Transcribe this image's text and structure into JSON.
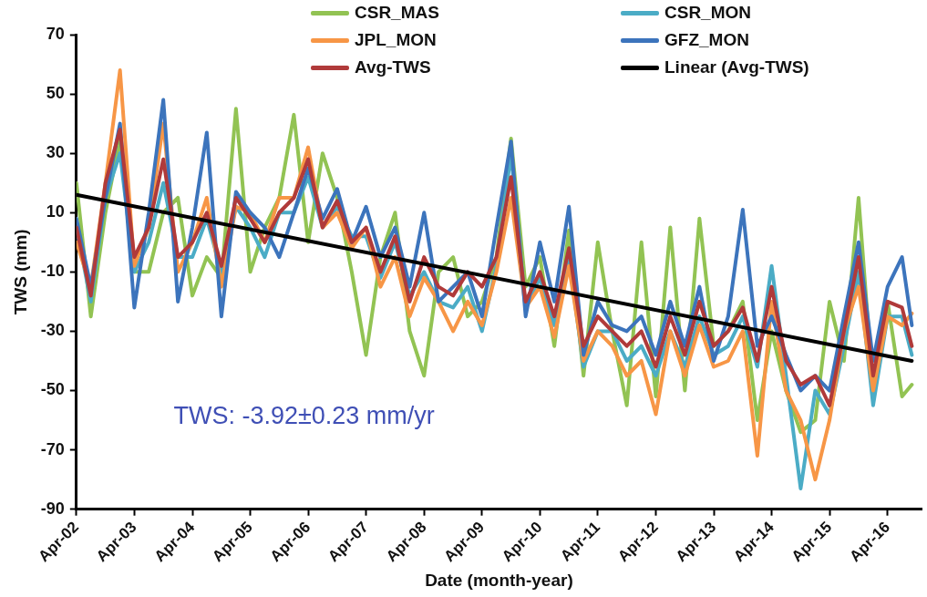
{
  "chart_data": {
    "type": "line",
    "xlabel": "Date (month-year)",
    "ylabel": "TWS (mm)",
    "annotations": [
      "TWS: -3.92±0.23 mm/yr"
    ],
    "x": [
      "2002-04",
      "2002-07",
      "2002-10",
      "2003-01",
      "2003-04",
      "2003-07",
      "2003-10",
      "2004-01",
      "2004-04",
      "2004-07",
      "2004-10",
      "2005-01",
      "2005-04",
      "2005-07",
      "2005-10",
      "2006-01",
      "2006-04",
      "2006-07",
      "2006-10",
      "2007-01",
      "2007-04",
      "2007-07",
      "2007-10",
      "2008-01",
      "2008-04",
      "2008-07",
      "2008-10",
      "2009-01",
      "2009-04",
      "2009-07",
      "2009-10",
      "2010-01",
      "2010-04",
      "2010-07",
      "2010-10",
      "2011-01",
      "2011-04",
      "2011-07",
      "2011-10",
      "2012-01",
      "2012-04",
      "2012-07",
      "2012-10",
      "2013-01",
      "2013-04",
      "2013-07",
      "2013-10",
      "2014-01",
      "2014-04",
      "2014-07",
      "2014-10",
      "2015-01",
      "2015-04",
      "2015-07",
      "2015-10",
      "2016-01",
      "2016-04",
      "2016-07",
      "2016-09"
    ],
    "series": [
      {
        "name": "CSR_MAS",
        "color": "#92c353",
        "values": [
          20,
          -25,
          10,
          35,
          -10,
          -10,
          10,
          15,
          -18,
          -5,
          -12,
          45,
          -10,
          5,
          15,
          43,
          0,
          30,
          15,
          -10,
          -38,
          -5,
          10,
          -30,
          -45,
          -10,
          -5,
          -25,
          -20,
          -5,
          35,
          -15,
          -5,
          -35,
          4,
          -45,
          0,
          -30,
          -55,
          0,
          -52,
          5,
          -50,
          8,
          -35,
          -30,
          -20,
          -60,
          -30,
          -50,
          -64,
          -60,
          -20,
          -40,
          15,
          -50,
          -20,
          -52,
          -48
        ]
      },
      {
        "name": "CSR_MON",
        "color": "#4bacc6",
        "values": [
          5,
          -20,
          15,
          30,
          -10,
          0,
          20,
          -5,
          -5,
          8,
          -10,
          12,
          5,
          -5,
          10,
          10,
          22,
          5,
          12,
          2,
          2,
          -12,
          0,
          -18,
          -10,
          -20,
          -22,
          -15,
          -30,
          -8,
          30,
          -22,
          -12,
          -28,
          -5,
          -42,
          -30,
          -30,
          -40,
          -35,
          -45,
          -30,
          -42,
          -25,
          -38,
          -35,
          -25,
          -42,
          -8,
          -45,
          -83,
          -50,
          -58,
          -35,
          -10,
          -55,
          -25,
          -25,
          -38
        ]
      },
      {
        "name": "JPL_MON",
        "color": "#f79646",
        "values": [
          0,
          -15,
          20,
          58,
          -8,
          5,
          40,
          -10,
          0,
          15,
          -15,
          12,
          10,
          0,
          15,
          15,
          32,
          5,
          10,
          -2,
          5,
          -15,
          -5,
          -25,
          -12,
          -20,
          -30,
          -20,
          -28,
          -10,
          15,
          -22,
          -15,
          -32,
          -8,
          -40,
          -30,
          -35,
          -45,
          -40,
          -58,
          -30,
          -45,
          -28,
          -42,
          -40,
          -30,
          -72,
          -20,
          -50,
          -60,
          -80,
          -60,
          -30,
          -15,
          -50,
          -25,
          -28,
          -24
        ]
      },
      {
        "name": "GFZ_MON",
        "color": "#3c74bc",
        "values": [
          8,
          -15,
          15,
          40,
          -22,
          10,
          48,
          -20,
          5,
          37,
          -25,
          17,
          10,
          5,
          -5,
          10,
          25,
          8,
          18,
          0,
          12,
          -5,
          5,
          -15,
          10,
          -20,
          -15,
          -10,
          -25,
          5,
          34,
          -25,
          0,
          -20,
          12,
          -38,
          -20,
          -28,
          -30,
          -25,
          -38,
          -20,
          -35,
          -15,
          -40,
          -25,
          11,
          -35,
          -25,
          -38,
          -50,
          -45,
          -50,
          -25,
          0,
          -40,
          -15,
          -5,
          -28
        ]
      },
      {
        "name": "Avg-TWS",
        "color": "#b03a3a",
        "values": [
          5,
          -18,
          20,
          38,
          -5,
          5,
          28,
          -5,
          0,
          10,
          -8,
          15,
          8,
          0,
          10,
          15,
          28,
          5,
          14,
          0,
          5,
          -10,
          2,
          -20,
          -5,
          -15,
          -18,
          -10,
          -15,
          -5,
          22,
          -20,
          -10,
          -25,
          -2,
          -35,
          -25,
          -30,
          -35,
          -30,
          -42,
          -25,
          -38,
          -20,
          -35,
          -30,
          -22,
          -40,
          -15,
          -40,
          -48,
          -45,
          -55,
          -30,
          -5,
          -45,
          -20,
          -22,
          -35
        ]
      },
      {
        "name": "Linear (Avg-TWS)",
        "color": "#000000",
        "type": "line",
        "x": [
          "2002-04",
          "2016-09"
        ],
        "values": [
          16,
          -40
        ]
      }
    ],
    "xlim": [
      "2002-04",
      "2016-11"
    ],
    "xticks": [
      {
        "value": "2002-04",
        "label": "Apr-02"
      },
      {
        "value": "2003-04",
        "label": "Apr-03"
      },
      {
        "value": "2004-04",
        "label": "Apr-04"
      },
      {
        "value": "2005-04",
        "label": "Apr-05"
      },
      {
        "value": "2006-04",
        "label": "Apr-06"
      },
      {
        "value": "2007-04",
        "label": "Apr-07"
      },
      {
        "value": "2008-04",
        "label": "Apr-08"
      },
      {
        "value": "2009-04",
        "label": "Apr-09"
      },
      {
        "value": "2010-04",
        "label": "Apr-10"
      },
      {
        "value": "2011-04",
        "label": "Apr-11"
      },
      {
        "value": "2012-04",
        "label": "Apr-12"
      },
      {
        "value": "2013-04",
        "label": "Apr-13"
      },
      {
        "value": "2014-04",
        "label": "Apr-14"
      },
      {
        "value": "2015-04",
        "label": "Apr-15"
      },
      {
        "value": "2016-04",
        "label": "Apr-16"
      }
    ],
    "ylim": [
      -90,
      70
    ],
    "yticks": [
      -90,
      -70,
      -50,
      -30,
      -10,
      10,
      30,
      50,
      70
    ],
    "legend": "top right",
    "marker": "none",
    "line_style": "solid"
  }
}
